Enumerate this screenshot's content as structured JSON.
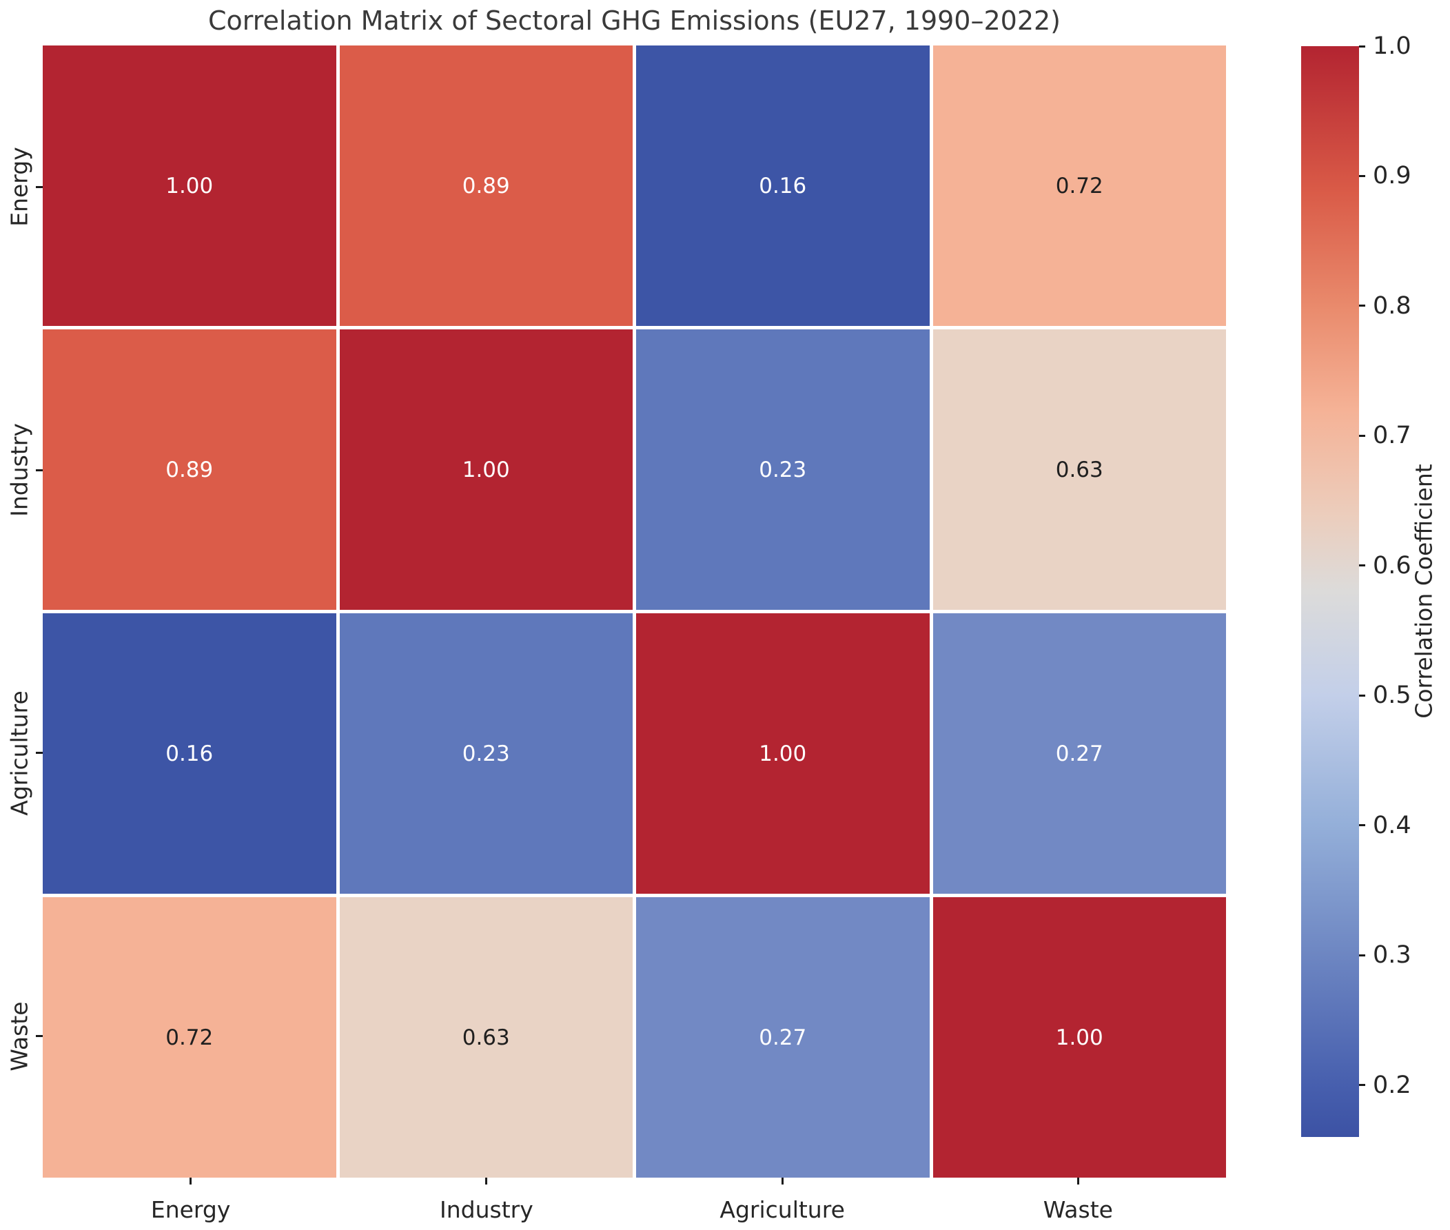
{
  "title": "Correlation Matrix of Sectoral GHG Emissions (EU27, 1990–2022)",
  "chart_data": {
    "type": "heatmap",
    "categories": [
      "Energy",
      "Industry",
      "Agriculture",
      "Waste"
    ],
    "x_axis_labels": [
      "Energy",
      "Industry",
      "Agriculture",
      "Waste"
    ],
    "y_axis_labels": [
      "Energy",
      "Industry",
      "Agriculture",
      "Waste"
    ],
    "matrix": [
      [
        1.0,
        0.89,
        0.16,
        0.72
      ],
      [
        0.89,
        1.0,
        0.23,
        0.63
      ],
      [
        0.16,
        0.23,
        1.0,
        0.27
      ],
      [
        0.72,
        0.63,
        0.27,
        1.0
      ]
    ],
    "annotation_format": "two_decimals",
    "colormap": "coolwarm",
    "grid": false,
    "colorbar": {
      "label": "Correlation Coefficient",
      "tick_labels": [
        "1.0",
        "0.9",
        "0.8",
        "0.7",
        "0.6",
        "0.5",
        "0.4",
        "0.3",
        "0.2"
      ],
      "tick_values": [
        1.0,
        0.9,
        0.8,
        0.7,
        0.6,
        0.5,
        0.4,
        0.3,
        0.2
      ],
      "vmin": 0.16,
      "vmax": 1.0,
      "position": "right"
    }
  },
  "colors": {
    "background": "#ffffff",
    "title_text": "#3a3a3a",
    "axis_text": "#262626",
    "annotation_light": "#ffffff",
    "annotation_dark": "#1f1f1f",
    "value_colors": {
      "1.00": {
        "bg": "#b32431",
        "fg": "#ffffff"
      },
      "0.89": {
        "bg": "#db5c49",
        "fg": "#ffffff"
      },
      "0.72": {
        "bg": "#f5b296",
        "fg": "#1f1f1f"
      },
      "0.63": {
        "bg": "#e9d3c5",
        "fg": "#1f1f1f"
      },
      "0.27": {
        "bg": "#7289c4",
        "fg": "#ffffff"
      },
      "0.23": {
        "bg": "#5f78bb",
        "fg": "#ffffff"
      },
      "0.16": {
        "bg": "#3d55a6",
        "fg": "#ffffff"
      }
    },
    "colorbar_gradient": [
      {
        "v": 1.0,
        "c": "#b32431"
      },
      {
        "v": 0.89,
        "c": "#d95a47"
      },
      {
        "v": 0.8,
        "c": "#e98a6c"
      },
      {
        "v": 0.72,
        "c": "#f5b296"
      },
      {
        "v": 0.64,
        "c": "#eccdbc"
      },
      {
        "v": 0.58,
        "c": "#dcdbda"
      },
      {
        "v": 0.5,
        "c": "#c3cfe9"
      },
      {
        "v": 0.4,
        "c": "#94afd9"
      },
      {
        "v": 0.3,
        "c": "#6d86c2"
      },
      {
        "v": 0.2,
        "c": "#475fae"
      },
      {
        "v": 0.16,
        "c": "#3c52a4"
      }
    ]
  }
}
